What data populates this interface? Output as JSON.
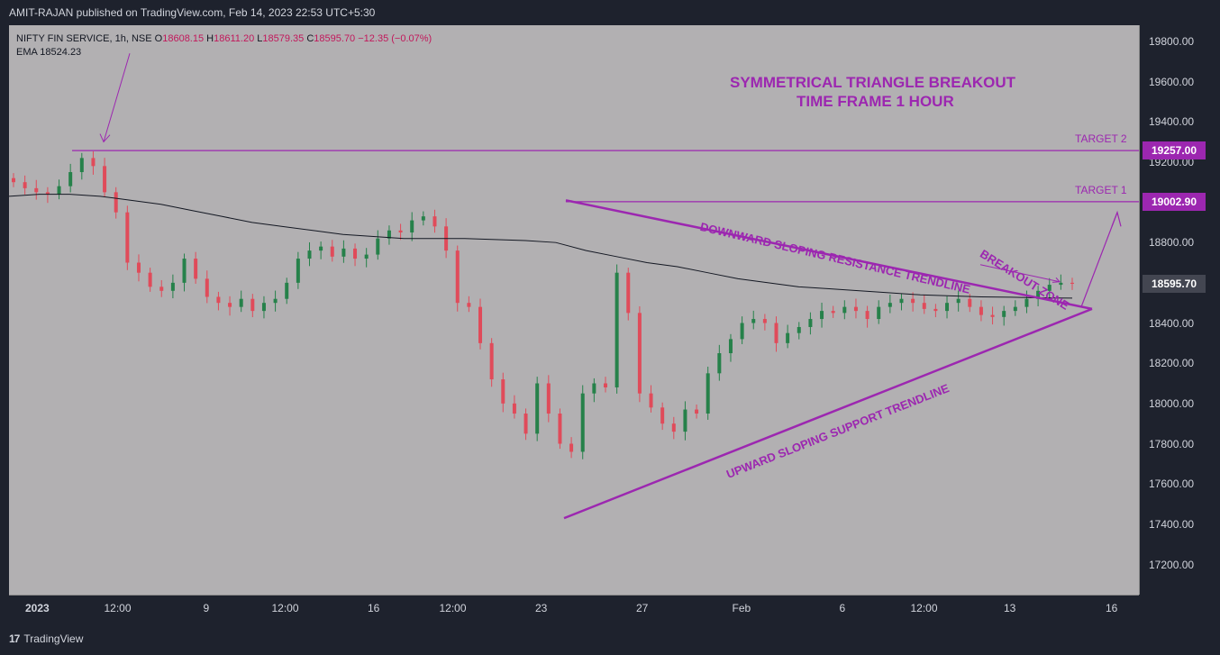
{
  "header": {
    "publisher_text": "AMIT-RAJAN published on TradingView.com, Feb 14, 2023 22:53 UTC+5:30"
  },
  "footer": {
    "brand": "TradingView",
    "logo": "17"
  },
  "legend": {
    "symbol": "NIFTY FIN SERVICE, 1h, NSE",
    "o_label": "O",
    "o_value": "18608.15",
    "h_label": "H",
    "h_value": "18611.20",
    "l_label": "L",
    "l_value": "18579.35",
    "c_label": "C",
    "c_value": "18595.70",
    "change": "−12.35 (−0.07%)",
    "ema_label": "EMA",
    "ema_value": "18524.23"
  },
  "colors": {
    "up": "#26814a",
    "down": "#e04b5a",
    "annotation": "#9c27b0",
    "ema": "#131722",
    "target_box": "#9c27b0",
    "price_box": "#434651"
  },
  "chart_data": {
    "type": "candlestick",
    "symbol": "NIFTY FIN SERVICE",
    "timeframe": "1h",
    "ylim": [
      17050,
      19880
    ],
    "y_ticks": [
      "19800.00",
      "19600.00",
      "19400.00",
      "19200.00",
      "19000.00",
      "18800.00",
      "18600.00",
      "18400.00",
      "18200.00",
      "18000.00",
      "17800.00",
      "17600.00",
      "17400.00",
      "17200.00"
    ],
    "x_ticks": [
      "2023",
      "12:00",
      "9",
      "12:00",
      "16",
      "12:00",
      "23",
      "27",
      "Feb",
      "6",
      "12:00",
      "13",
      "16"
    ],
    "title": "SYMMETRICAL TRIANGLE BREAKOUT",
    "subtitle": "TIME FRAME 1 HOUR",
    "levels": [
      {
        "label": "TARGET 2",
        "value": 19257.0,
        "value_text": "19257.00"
      },
      {
        "label": "TARGET 1",
        "value": 19002.9,
        "value_text": "19002.90"
      }
    ],
    "last_price": {
      "value": 18595.7,
      "text": "18595.70"
    },
    "annotations": [
      "DOWNWARD SLOPING RESISTANCE TRENDLINE",
      "UPWARD SLOPING SUPPORT TRENDLINE",
      "BREAKOUT ZONE"
    ],
    "close_path": [
      19100,
      19070,
      19050,
      19040,
      19080,
      19150,
      19220,
      19180,
      19050,
      18950,
      18700,
      18650,
      18580,
      18560,
      18600,
      18720,
      18620,
      18530,
      18500,
      18480,
      18520,
      18460,
      18500,
      18520,
      18600,
      18720,
      18760,
      18780,
      18730,
      18770,
      18720,
      18740,
      18820,
      18860,
      18850,
      18910,
      18930,
      18880,
      18760,
      18500,
      18480,
      18300,
      18120,
      18000,
      17950,
      17850,
      18100,
      17950,
      17800,
      17760,
      18050,
      18100,
      18080,
      18650,
      18450,
      18050,
      17980,
      17900,
      17860,
      17970,
      17950,
      18150,
      18250,
      18320,
      18400,
      18420,
      18400,
      18300,
      18350,
      18380,
      18420,
      18460,
      18450,
      18480,
      18460,
      18420,
      18480,
      18500,
      18520,
      18500,
      18470,
      18460,
      18500,
      18520,
      18480,
      18440,
      18430,
      18460,
      18480,
      18520,
      18560,
      18590,
      18600,
      18595
    ],
    "ema_path": [
      19030,
      19040,
      19040,
      19030,
      19010,
      18990,
      18960,
      18930,
      18900,
      18880,
      18860,
      18840,
      18830,
      18820,
      18820,
      18820,
      18815,
      18810,
      18800,
      18760,
      18730,
      18700,
      18680,
      18650,
      18620,
      18600,
      18580,
      18570,
      18560,
      18550,
      18540,
      18535,
      18530,
      18528,
      18525,
      18524
    ],
    "resistance_trendline": [
      [
        19010,
        18500
      ]
    ],
    "support_trendline": [
      [
        17430,
        18470
      ]
    ]
  }
}
